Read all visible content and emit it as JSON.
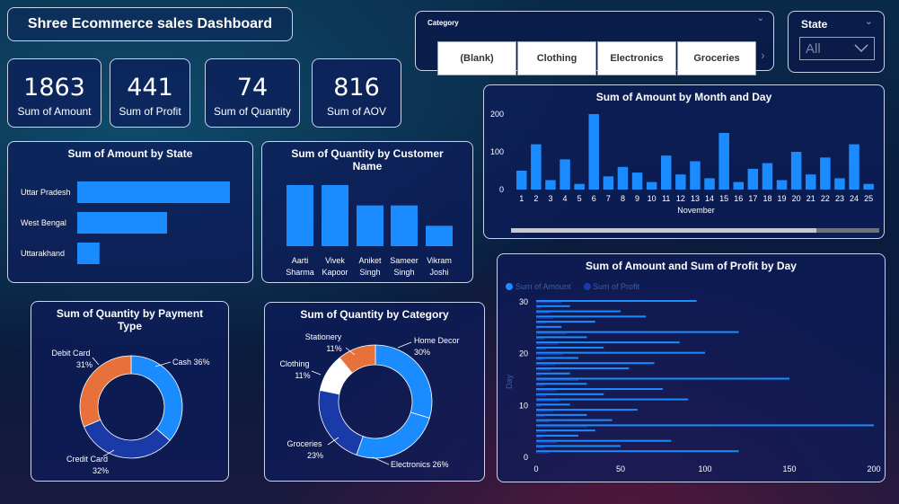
{
  "dashboard": {
    "title": "Shree Ecommerce sales Dashboard"
  },
  "kpis": [
    {
      "value": "1863",
      "label": "Sum of Amount"
    },
    {
      "value": "441",
      "label": "Sum of Profit"
    },
    {
      "value": "74",
      "label": "Sum of Quantity"
    },
    {
      "value": "816",
      "label": "Sum of AOV"
    }
  ],
  "category_slicer": {
    "title": "Category",
    "options": [
      "(Blank)",
      "Clothing",
      "Electronics",
      "Groceries"
    ]
  },
  "state_slicer": {
    "title": "State",
    "selected": "All"
  },
  "chart_data": [
    {
      "id": "amount_by_state",
      "type": "bar",
      "orientation": "horizontal",
      "title": "Sum of Amount by State",
      "categories": [
        "Uttar Pradesh",
        "West Bengal",
        "Uttarakhand"
      ],
      "values": [
        960,
        565,
        140
      ],
      "color": "#1a8cff"
    },
    {
      "id": "quantity_by_customer",
      "type": "bar",
      "title": "Sum of Quantity by Customer Name",
      "categories": [
        "Aarti Sharma",
        "Vivek Kapoor",
        "Aniket Singh",
        "Sameer Singh",
        "Vikram Joshi"
      ],
      "labels_line1": [
        "Aarti",
        "Vivek",
        "Aniket",
        "Sameer",
        "Vikram"
      ],
      "labels_line2": [
        "Sharma",
        "Kapoor",
        "Singh",
        "Singh",
        "Joshi"
      ],
      "values": [
        15,
        15,
        10,
        10,
        5
      ],
      "color": "#1a8cff"
    },
    {
      "id": "amount_by_month_day",
      "type": "bar",
      "title": "Sum of Amount by Month and Day",
      "xlabel": "November",
      "categories": [
        "1",
        "2",
        "3",
        "4",
        "5",
        "6",
        "7",
        "8",
        "9",
        "10",
        "11",
        "12",
        "13",
        "14",
        "15",
        "16",
        "17",
        "18",
        "19",
        "20",
        "21",
        "22",
        "23",
        "24",
        "25"
      ],
      "values": [
        50,
        120,
        25,
        80,
        15,
        200,
        35,
        60,
        45,
        20,
        90,
        40,
        75,
        30,
        150,
        20,
        55,
        70,
        25,
        100,
        40,
        85,
        30,
        120,
        15
      ],
      "yticks": [
        "0",
        "100",
        "200"
      ],
      "ylim": [
        0,
        200
      ],
      "color": "#1a8cff"
    },
    {
      "id": "quantity_by_payment",
      "type": "pie",
      "donut": true,
      "title": "Sum of Quantity by Payment Type",
      "slices": [
        {
          "name": "Cash",
          "value": 36,
          "label": "Cash 36%",
          "color": "#1a8cff"
        },
        {
          "name": "Credit Card",
          "value": 32,
          "label_line1": "Credit Card",
          "label_line2": "32%",
          "color": "#1a3aa8"
        },
        {
          "name": "Debit Card",
          "value": 31,
          "label_line1": "Debit Card",
          "label_line2": "31%",
          "color": "#e8703a"
        }
      ]
    },
    {
      "id": "quantity_by_category",
      "type": "pie",
      "donut": true,
      "title": "Sum of Quantity by Category",
      "slices": [
        {
          "name": "Home Decor",
          "value": 30,
          "label_line1": "Home Decor",
          "label_line2": "30%",
          "color": "#1a8cff"
        },
        {
          "name": "Electronics",
          "value": 26,
          "label_line1": "Electronics 26%",
          "label_line2": "",
          "color": "#1a8cff"
        },
        {
          "name": "Groceries",
          "value": 23,
          "label_line1": "Groceries",
          "label_line2": "23%",
          "color": "#1a3aa8"
        },
        {
          "name": "Clothing",
          "value": 11,
          "label_line1": "Clothing",
          "label_line2": "11%",
          "color": "#ffffff"
        },
        {
          "name": "Stationery",
          "value": 11,
          "label_line1": "Stationery",
          "label_line2": "11%",
          "color": "#e8703a"
        }
      ]
    },
    {
      "id": "amount_profit_by_day",
      "type": "bar",
      "orientation": "horizontal",
      "title": "Sum of Amount and Sum of Profit by Day",
      "ylabel": "Day",
      "xticks": [
        "0",
        "50",
        "100",
        "150",
        "200"
      ],
      "yticks": [
        "0",
        "10",
        "20",
        "30"
      ],
      "xlim": [
        0,
        200
      ],
      "ylim": [
        0,
        30
      ],
      "legend": [
        {
          "name": "Sum of Amount",
          "color": "#1a8cff"
        },
        {
          "name": "Sum of Profit",
          "color": "#1a3aa8"
        }
      ],
      "days": [
        1,
        2,
        3,
        4,
        5,
        6,
        7,
        8,
        9,
        10,
        11,
        12,
        13,
        14,
        15,
        16,
        17,
        18,
        19,
        20,
        21,
        22,
        23,
        24,
        25,
        26,
        27,
        28,
        29,
        30
      ],
      "amount": [
        120,
        50,
        80,
        25,
        35,
        200,
        45,
        30,
        60,
        20,
        90,
        40,
        75,
        30,
        150,
        20,
        55,
        70,
        25,
        100,
        40,
        85,
        30,
        120,
        15,
        35,
        65,
        50,
        20,
        95
      ],
      "profit": [
        8,
        5,
        12,
        4,
        6,
        30,
        8,
        5,
        10,
        3,
        14,
        6,
        12,
        5,
        25,
        3,
        9,
        11,
        4,
        16,
        6,
        13,
        5,
        18,
        2,
        6,
        10,
        8,
        3,
        15
      ]
    }
  ]
}
